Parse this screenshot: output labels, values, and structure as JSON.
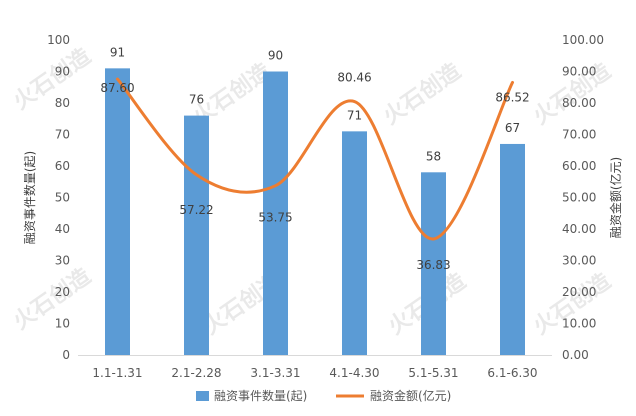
{
  "watermark": "火石创造",
  "chart_data": {
    "type": "bar+line",
    "categories": [
      "1.1-1.31",
      "2.1-2.28",
      "3.1-3.31",
      "4.1-4.30",
      "5.1-5.31",
      "6.1-6.30"
    ],
    "series": [
      {
        "name": "融资事件数量(起)",
        "type": "bar",
        "axis": "left",
        "values": [
          91,
          76,
          90,
          71,
          58,
          67
        ],
        "color": "#5b9bd5"
      },
      {
        "name": "融资金额(亿元)",
        "type": "line",
        "axis": "right",
        "smooth": true,
        "values": [
          87.6,
          57.22,
          53.75,
          80.46,
          36.83,
          86.52
        ],
        "value_labels": [
          "87.60",
          "57.22",
          "53.75",
          "80.46",
          "36.83",
          "86.52"
        ],
        "color": "#ed7d31"
      }
    ],
    "y_left": {
      "label": "融资事件数量(起)",
      "range": [
        0,
        100
      ],
      "ticks": [
        "0",
        "10",
        "20",
        "30",
        "40",
        "50",
        "60",
        "70",
        "80",
        "90",
        "100"
      ]
    },
    "y_right": {
      "label": "融资金额(亿元)",
      "range": [
        0,
        100
      ],
      "ticks": [
        "0.00",
        "10.00",
        "20.00",
        "30.00",
        "40.00",
        "50.00",
        "60.00",
        "70.00",
        "80.00",
        "90.00",
        "100.00"
      ]
    },
    "grid": false,
    "legend_position": "bottom"
  }
}
